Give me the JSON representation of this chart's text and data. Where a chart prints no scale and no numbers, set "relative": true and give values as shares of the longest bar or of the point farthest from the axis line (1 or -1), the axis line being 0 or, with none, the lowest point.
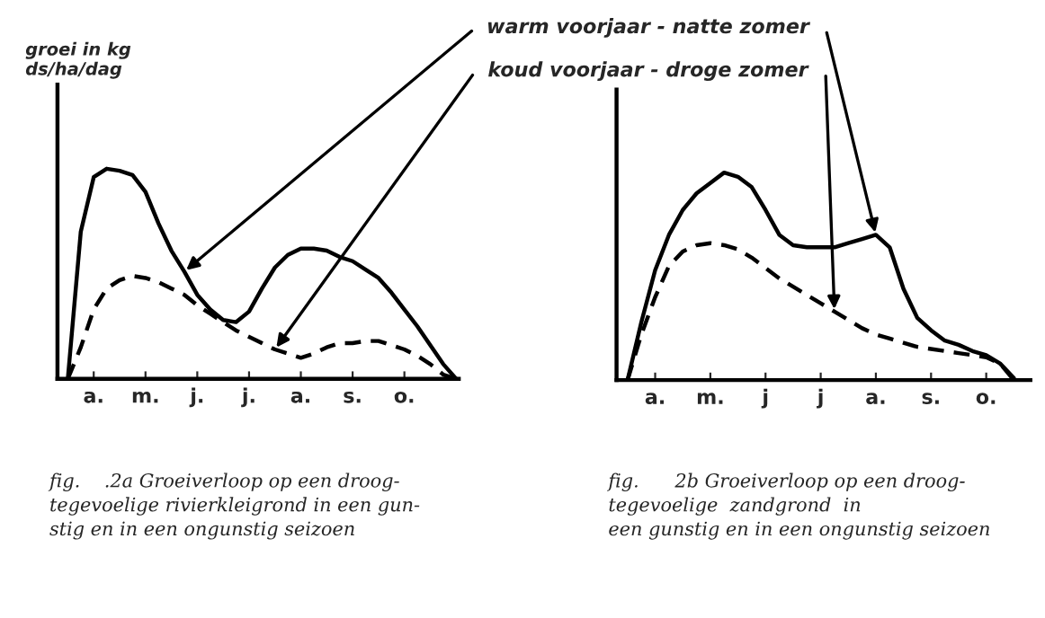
{
  "chart_data": [
    {
      "type": "line",
      "relative": true,
      "ylabel": "groei in kg\nds/ha/dag",
      "tick_labels": "x",
      "categories": [
        null,
        null,
        "a.",
        null,
        null,
        null,
        "m.",
        null,
        null,
        null,
        "j.",
        null,
        null,
        null,
        "j.",
        null,
        null,
        null,
        "a.",
        null,
        null,
        null,
        "s.",
        null,
        null,
        null,
        "o.",
        null,
        null,
        null,
        null
      ],
      "series": [
        {
          "name": "warm voorjaar - natte zomer",
          "color": "#000000",
          "line_style": "solid",
          "values": [
            0,
            0.7,
            0.96,
            1.0,
            0.99,
            0.97,
            0.89,
            0.74,
            0.61,
            0.51,
            0.4,
            0.33,
            0.28,
            0.27,
            0.32,
            0.43,
            0.53,
            0.59,
            0.62,
            0.62,
            0.61,
            0.58,
            0.56,
            0.52,
            0.48,
            0.41,
            0.33,
            0.25,
            0.16,
            0.07,
            0
          ]
        },
        {
          "name": "koud voorjaar - droge zomer",
          "color": "#000000",
          "line_style": "dashed",
          "values": [
            0,
            0.15,
            0.33,
            0.43,
            0.47,
            0.49,
            0.48,
            0.46,
            0.43,
            0.4,
            0.35,
            0.31,
            0.27,
            0.23,
            0.2,
            0.17,
            0.14,
            0.12,
            0.1,
            0.12,
            0.15,
            0.17,
            0.17,
            0.18,
            0.18,
            0.16,
            0.14,
            0.11,
            0.07,
            0.02,
            0
          ]
        }
      ],
      "annotations": [
        "fig.    .2a Groeiverloop op een droog-\ntegevoelige rivierkleigrond in een gun-\nstig en in een ongunstig seizoen"
      ]
    },
    {
      "type": "line",
      "relative": true,
      "tick_labels": "x",
      "categories": [
        null,
        null,
        "a.",
        null,
        null,
        null,
        "m.",
        null,
        null,
        null,
        "j",
        null,
        null,
        null,
        "j",
        null,
        null,
        null,
        "a.",
        null,
        null,
        null,
        "s.",
        null,
        null,
        null,
        "o.",
        null,
        null,
        null
      ],
      "series": [
        {
          "color": "#000000",
          "line_style": "solid",
          "values": [
            0,
            0.28,
            0.53,
            0.7,
            0.82,
            0.9,
            0.95,
            1.0,
            0.98,
            0.93,
            0.82,
            0.7,
            0.65,
            0.64,
            0.64,
            0.64,
            0.66,
            0.68,
            0.7,
            0.64,
            0.44,
            0.3,
            0.24,
            0.19,
            0.17,
            0.14,
            0.12,
            0.08,
            0.01,
            null
          ]
        },
        {
          "color": "#000000",
          "line_style": "dashed",
          "values": [
            0,
            0.22,
            0.4,
            0.55,
            0.62,
            0.65,
            0.66,
            0.65,
            0.63,
            0.59,
            0.54,
            0.49,
            0.45,
            0.41,
            0.37,
            0.33,
            0.29,
            0.25,
            0.22,
            0.2,
            0.18,
            0.16,
            0.15,
            0.14,
            0.13,
            0.12,
            0.11,
            0.08,
            0,
            null
          ]
        }
      ],
      "annotations": [
        "fig.      2b Groeiverloop op een droog-\ntegevoelige  zandgrond  in\neen gunstig en in een ongunstig seizoen"
      ]
    }
  ]
}
